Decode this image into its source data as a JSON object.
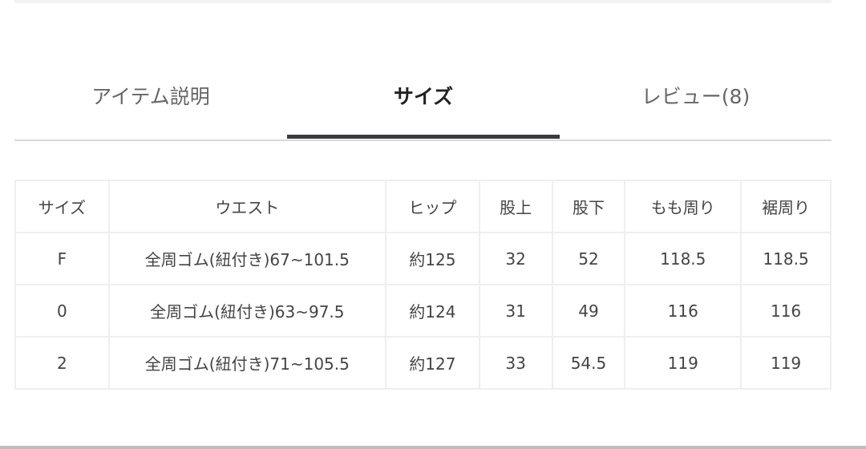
{
  "tabs": [
    {
      "label": "アイテム説明",
      "active": false
    },
    {
      "label": "サイズ",
      "active": true
    },
    {
      "label": "レビュー(8)",
      "active": false
    }
  ],
  "size_table": {
    "headers": [
      "サイズ",
      "ウエスト",
      "ヒップ",
      "股上",
      "股下",
      "もも周り",
      "裾周り"
    ],
    "rows": [
      [
        "F",
        "全周ゴム(紐付き)67~101.5",
        "約125",
        "32",
        "52",
        "118.5",
        "118.5"
      ],
      [
        "0",
        "全周ゴム(紐付き)63~97.5",
        "約124",
        "31",
        "49",
        "116",
        "116"
      ],
      [
        "2",
        "全周ゴム(紐付き)71~105.5",
        "約127",
        "33",
        "54.5",
        "119",
        "119"
      ]
    ]
  }
}
